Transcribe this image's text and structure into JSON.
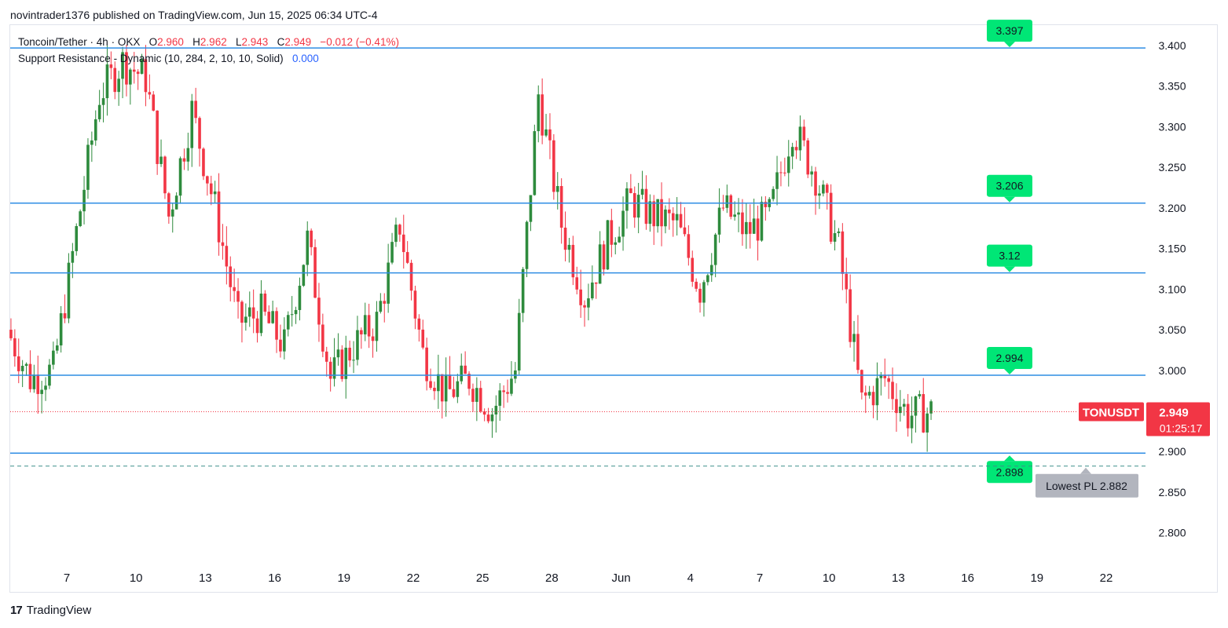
{
  "header": {
    "published": "novintrader1376 published on TradingView.com, Jun 15, 2025 06:34 UTC-4"
  },
  "legend": {
    "symbol": "Toncoin/Tether · 4h · OKX",
    "o_label": "O",
    "o_value": "2.960",
    "h_label": "H",
    "h_value": "2.962",
    "l_label": "L",
    "l_value": "2.943",
    "c_label": "C",
    "c_value": "2.949",
    "change": "−0.012 (−0.41%)",
    "indicator": "Support Resistance - Dynamic (10, 284, 2, 10, 10, Solid)",
    "indicator_value": "0.000"
  },
  "footer": {
    "brand": "TradingView",
    "logo_glyph": "17"
  },
  "colors": {
    "up": "#2e8b3d",
    "down": "#f23645",
    "level_line": "#2f8de4",
    "level_tag": "#00e676",
    "price_tag": "#f23645",
    "axis_text": "#131722"
  },
  "chart_data": {
    "type": "candlestick",
    "symbol": "TONUSDT",
    "interval": "4h",
    "ylim": [
      2.76,
      3.43
    ],
    "y_ticks": [
      3.4,
      3.35,
      3.3,
      3.25,
      3.2,
      3.15,
      3.1,
      3.05,
      3.0,
      2.95,
      2.9,
      2.85,
      2.8
    ],
    "y_tick_labels": [
      "3.400",
      "3.350",
      "3.300",
      "3.250",
      "3.200",
      "3.150",
      "3.100",
      "3.050",
      "3.000",
      "2.950",
      "2.900",
      "2.850",
      "2.800"
    ],
    "x_ticks": [
      "7",
      "10",
      "13",
      "16",
      "19",
      "22",
      "25",
      "28",
      "Jun",
      "4",
      "7",
      "10",
      "13",
      "16",
      "19",
      "22"
    ],
    "x_tick_day_index": [
      0,
      3,
      6,
      9,
      12,
      15,
      18,
      21,
      24,
      27,
      30,
      33,
      36,
      39,
      42,
      45
    ],
    "levels": [
      {
        "value": 3.397,
        "label": "3.397"
      },
      {
        "value": 3.206,
        "label": "3.206"
      },
      {
        "value": 3.12,
        "label": "3.12"
      },
      {
        "value": 2.994,
        "label": "2.994"
      },
      {
        "value": 2.898,
        "label": "2.898"
      }
    ],
    "lowest_pl": {
      "value": 2.882,
      "label": "Lowest PL 2.882"
    },
    "last_price": {
      "value": 2.949,
      "symbol_label": "TONUSDT",
      "price_label": "2.949",
      "countdown": "01:25:17"
    },
    "daily_closes": [
      3.05,
      2.99,
      3.0,
      3.17,
      3.34,
      3.38,
      3.36,
      3.19,
      3.32,
      3.2,
      3.06,
      3.07,
      3.03,
      3.16,
      2.99,
      3.03,
      3.06,
      3.18,
      3.02,
      2.97,
      2.99,
      2.95,
      3.0,
      3.34,
      3.18,
      3.09,
      3.16,
      3.21,
      3.19,
      3.18,
      3.1,
      3.2,
      3.17,
      3.19,
      3.3,
      3.24,
      3.15,
      2.96,
      2.99,
      2.945,
      2.949
    ]
  }
}
